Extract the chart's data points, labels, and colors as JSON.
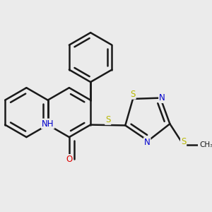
{
  "bg_color": "#ebebeb",
  "bond_color": "#1a1a1a",
  "atom_colors": {
    "S": "#b8b800",
    "N": "#0000cc",
    "O": "#dd0000",
    "H": "#555555",
    "C": "#1a1a1a"
  },
  "bond_width": 1.8,
  "figsize": [
    3.0,
    3.0
  ],
  "dpi": 100
}
